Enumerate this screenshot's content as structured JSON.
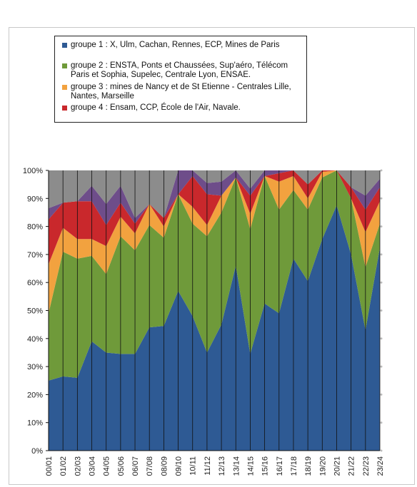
{
  "chart_data": {
    "type": "area",
    "stacked": true,
    "categories": [
      "00/01",
      "01/02",
      "02/03",
      "03/04",
      "04/05",
      "05/06",
      "06/07",
      "07/08",
      "08/09",
      "09/10",
      "10/11",
      "11/12",
      "12/13",
      "13/14",
      "14/15",
      "15/16",
      "16/17",
      "17/18",
      "18/19",
      "19/20",
      "20/21",
      "21/22",
      "22/23",
      "23/24"
    ],
    "y_ticks": [
      "0%",
      "10%",
      "20%",
      "30%",
      "40%",
      "50%",
      "60%",
      "70%",
      "80%",
      "90%",
      "100%"
    ],
    "ylim": [
      0,
      100
    ],
    "legend_position": "top",
    "series": [
      {
        "name": "groupe 1 : X, Ulm, Cachan, Rennes, ECP, Mines de Paris",
        "color": "#2e5a94",
        "values": [
          25,
          26.5,
          26,
          39,
          35,
          34.5,
          34.5,
          44,
          44.5,
          57,
          48,
          35,
          45,
          66,
          34.5,
          52.5,
          49,
          68.5,
          60.5,
          75.5,
          87.5,
          70,
          43,
          72.5
        ]
      },
      {
        "name": "groupe 2 : ENSTA, Ponts et Chaussées, Sup'aéro, Télécom Paris et Sophia, Supelec, Centrale Lyon, ENSAE.",
        "color": "#6f9a3a",
        "values": [
          24,
          44.5,
          42.5,
          30.5,
          28,
          42,
          37,
          36.5,
          31.5,
          34.5,
          33,
          41.5,
          40,
          31.5,
          44.5,
          45.5,
          37,
          24.5,
          25.5,
          22,
          12.5,
          20,
          22.5,
          8.5
        ]
      },
      {
        "name": "groupe 3 : mines de Nancy et de St Etienne - Centrales Lille, Nantes, Marseille",
        "color": "#f2a23f",
        "values": [
          17.5,
          8.5,
          7,
          6,
          10,
          7,
          6,
          7.5,
          4,
          0,
          6,
          4,
          6,
          0,
          5.5,
          0,
          10,
          5,
          4,
          2,
          0,
          0,
          12.5,
          8
        ]
      },
      {
        "name": "groupe 4 : Ensam, CCP, École de l'Air, Navale.",
        "color": "#c9282c",
        "values": [
          16,
          9,
          13.5,
          13.5,
          7.5,
          5,
          3.5,
          0,
          3,
          0,
          11,
          11,
          0,
          0,
          6.5,
          0,
          3,
          2,
          5,
          1,
          0,
          4,
          8,
          5
        ]
      },
      {
        "name": "",
        "color": "#6e4d8a",
        "values": [
          4,
          0,
          0,
          5.5,
          7.5,
          6,
          2,
          0,
          0,
          8.5,
          2,
          4,
          5,
          2.5,
          2.5,
          2,
          1,
          0,
          0,
          0,
          0,
          0,
          5,
          3
        ]
      },
      {
        "name": "",
        "color": "#8c8c8c",
        "values": [
          13.5,
          11.5,
          11,
          5.5,
          12,
          5.5,
          17,
          12,
          17,
          0,
          0,
          4.5,
          4,
          0,
          6.5,
          0,
          0,
          0,
          5,
          0,
          0,
          6,
          9,
          3
        ]
      }
    ]
  }
}
